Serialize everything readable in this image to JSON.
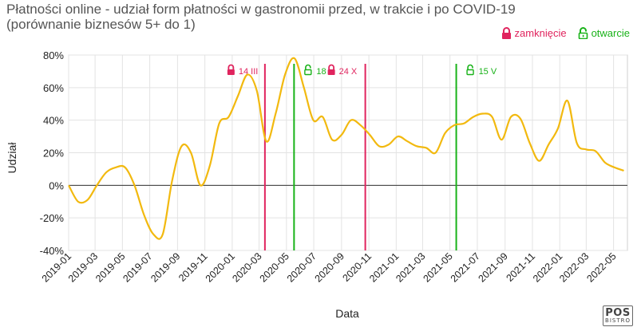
{
  "header": {
    "title_line1": "Płatności online - udział form płatności w gastronomii przed, w trakcie i po COVID-19",
    "title_line2": "(porównanie biznesów 5+ do 1)"
  },
  "legend": {
    "close_label": "zamknięcie",
    "open_label": "otwarcie",
    "close_color": "#e0245e",
    "open_color": "#19b219"
  },
  "logo": {
    "line1": "POS",
    "line2": "BISTRO"
  },
  "chart_data": {
    "type": "line",
    "title": "Płatności online - udział form płatności w gastronomii przed, w trakcie i po COVID-19",
    "subtitle": "(porównanie biznesów 5+ do 1)",
    "xlabel": "Data",
    "ylabel": "Udział",
    "ylim": [
      -40,
      80
    ],
    "yticks": [
      -40,
      -20,
      0,
      20,
      40,
      60,
      80
    ],
    "ytick_labels": [
      "-40%",
      "-20%",
      "0%",
      "20%",
      "40%",
      "60%",
      "80%"
    ],
    "xtick_labels": [
      "2019-01",
      "2019-03",
      "2019-05",
      "2019-07",
      "2019-09",
      "2019-11",
      "2020-01",
      "2020-03",
      "2020-05",
      "2020-07",
      "2020-09",
      "2020-11",
      "2021-01",
      "2021-03",
      "2021-05",
      "2021-07",
      "2021-09",
      "2021-11",
      "2022-01",
      "2022-03",
      "2022-05"
    ],
    "grid": true,
    "line_color": "#f2b90f",
    "series": [
      {
        "points": [
          [
            "2019-01-01",
            0
          ],
          [
            "2019-01-22",
            -10
          ],
          [
            "2019-02-12",
            -9
          ],
          [
            "2019-03-05",
            0
          ],
          [
            "2019-03-26",
            8
          ],
          [
            "2019-04-16",
            11
          ],
          [
            "2019-05-07",
            11
          ],
          [
            "2019-05-28",
            0
          ],
          [
            "2019-06-18",
            -18
          ],
          [
            "2019-07-09",
            -30
          ],
          [
            "2019-07-30",
            -30
          ],
          [
            "2019-08-20",
            3
          ],
          [
            "2019-09-10",
            24
          ],
          [
            "2019-10-01",
            20
          ],
          [
            "2019-10-22",
            0
          ],
          [
            "2019-11-12",
            12
          ],
          [
            "2019-12-03",
            38
          ],
          [
            "2019-12-24",
            42
          ],
          [
            "2020-01-14",
            55
          ],
          [
            "2020-02-04",
            68
          ],
          [
            "2020-02-25",
            58
          ],
          [
            "2020-03-17",
            27
          ],
          [
            "2020-04-07",
            44
          ],
          [
            "2020-04-28",
            68
          ],
          [
            "2020-05-19",
            78
          ],
          [
            "2020-06-09",
            60
          ],
          [
            "2020-06-30",
            40
          ],
          [
            "2020-07-21",
            42
          ],
          [
            "2020-08-11",
            28
          ],
          [
            "2020-09-01",
            31
          ],
          [
            "2020-09-22",
            40
          ],
          [
            "2020-10-13",
            37
          ],
          [
            "2020-11-03",
            31
          ],
          [
            "2020-11-24",
            24
          ],
          [
            "2020-12-15",
            25
          ],
          [
            "2021-01-05",
            30
          ],
          [
            "2021-01-26",
            27
          ],
          [
            "2021-02-16",
            24
          ],
          [
            "2021-03-09",
            23
          ],
          [
            "2021-03-30",
            20
          ],
          [
            "2021-04-20",
            32
          ],
          [
            "2021-05-11",
            37
          ],
          [
            "2021-06-01",
            38
          ],
          [
            "2021-06-22",
            42
          ],
          [
            "2021-07-13",
            44
          ],
          [
            "2021-08-03",
            42
          ],
          [
            "2021-08-24",
            28
          ],
          [
            "2021-09-14",
            42
          ],
          [
            "2021-10-05",
            41
          ],
          [
            "2021-10-26",
            26
          ],
          [
            "2021-11-16",
            15
          ],
          [
            "2021-12-07",
            25
          ],
          [
            "2021-12-28",
            35
          ],
          [
            "2022-01-18",
            52
          ],
          [
            "2022-02-08",
            26
          ],
          [
            "2022-03-01",
            22
          ],
          [
            "2022-03-22",
            21
          ],
          [
            "2022-04-12",
            14
          ],
          [
            "2022-05-03",
            11
          ],
          [
            "2022-05-24",
            9
          ]
        ]
      }
    ],
    "events": [
      {
        "type": "zamknięcie",
        "label": "14 III",
        "date": "2020-03-14"
      },
      {
        "type": "otwarcie",
        "label": "18 V",
        "date": "2020-05-18"
      },
      {
        "type": "zamknięcie",
        "label": "24 X",
        "date": "2020-10-24"
      },
      {
        "type": "otwarcie",
        "label": "15 V",
        "date": "2021-05-15"
      }
    ]
  }
}
